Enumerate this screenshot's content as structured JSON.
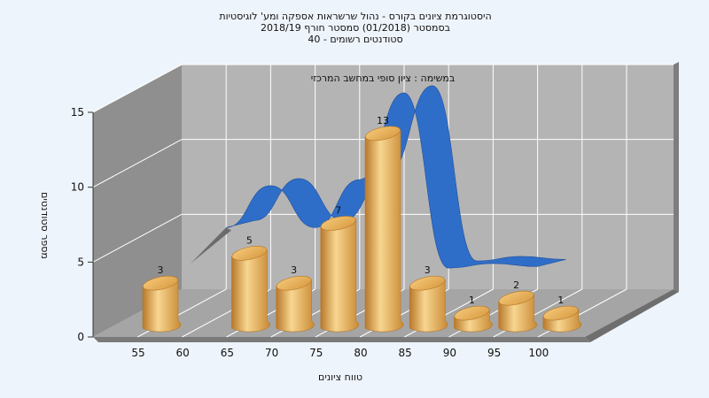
{
  "chart_data": {
    "type": "bar",
    "title_lines": [
      "היסטוגרמת ציונים בקורס - נהול שרשראות אספקה ומע' לוגיסטיות",
      "בסמסטר  (01/2018)  סמסטר חורף 2018/19",
      "סטודנטים רשומים - 40"
    ],
    "subtitle": "במשימה : ציון סופי במחשב המרכזי",
    "xlabel": "טווח ציונים",
    "ylabel": "מספר סטודנטים",
    "x_tick_labels": [
      "55",
      "60",
      "65",
      "70",
      "75",
      "80",
      "85",
      "90",
      "95",
      "100"
    ],
    "y_ticks": [
      0,
      5,
      10,
      15
    ],
    "ylim": [
      0,
      15
    ],
    "grid": true,
    "bars": [
      {
        "x": 55,
        "value": 3
      },
      {
        "x": 65,
        "value": 5
      },
      {
        "x": 70,
        "value": 3
      },
      {
        "x": 75,
        "value": 7
      },
      {
        "x": 80,
        "value": 13
      },
      {
        "x": 85,
        "value": 3
      },
      {
        "x": 90,
        "value": 1
      },
      {
        "x": 95,
        "value": 2
      },
      {
        "x": 100,
        "value": 1
      }
    ],
    "curve_values": [
      5.0,
      7.8,
      5.0,
      8.2,
      14.0,
      2.3,
      2.6,
      2.4
    ],
    "colors": {
      "bar": "#e8a84c",
      "bar_light": "#f8d690",
      "bar_dark": "#b8782a",
      "curve": "#2f6ec8",
      "wall": "#b4b4b4",
      "side_wall": "#8f8f8f",
      "floor": "#a5a5a5",
      "background": "#eef4fb"
    }
  }
}
